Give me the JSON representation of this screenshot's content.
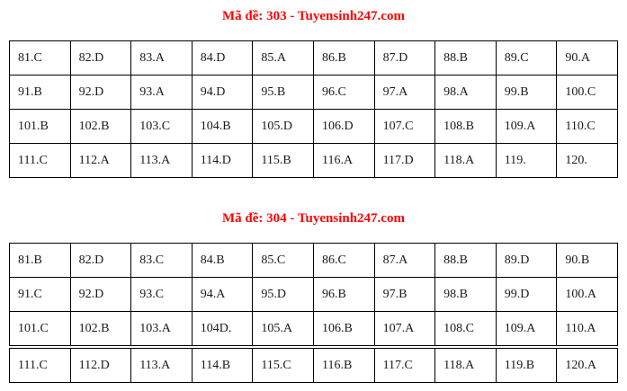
{
  "colors": {
    "title_red": "#ff0000",
    "cell_text": "#1a1a1a",
    "table_border": "#000000",
    "background": "#ffffff"
  },
  "table_303": {
    "title": "Mã đề: 303 - Tuyensinh247.com",
    "rows": [
      [
        "81.C",
        "82.D",
        "83.A",
        "84.D",
        "85.A",
        "86.B",
        "87.D",
        "88.B",
        "89.C",
        "90.A"
      ],
      [
        "91.B",
        "92.D",
        "93.A",
        "94.D",
        "95.B",
        "96.C",
        "97.A",
        "98.A",
        "99.B",
        "100.C"
      ],
      [
        "101.B",
        "102.B",
        "103.C",
        "104.B",
        "105.D",
        "106.D",
        "107.C",
        "108.B",
        "109.A",
        "110.C"
      ],
      [
        "111.C",
        "112.A",
        "113.A",
        "114.D",
        "115.B",
        "116.A",
        "117.D",
        "118.A",
        "119.",
        "120."
      ]
    ]
  },
  "table_304": {
    "title": "Mã đề: 304 - Tuyensinh247.com",
    "rows": [
      [
        "81.B",
        "82.D",
        "83.C",
        "84.B",
        "85.C",
        "86.C",
        "87.A",
        "88.B",
        "89.D",
        "90.B"
      ],
      [
        "91.C",
        "92.D",
        "93.C",
        "94.A",
        "95.D",
        "96.B",
        "97.B",
        "98.B",
        "99.D",
        "100.A"
      ],
      [
        "101.C",
        "102.B",
        "103.A",
        "104D.",
        "105.A",
        "106.B",
        "107.A",
        "108.C",
        "109.A",
        "110.A"
      ],
      [
        "111.C",
        "112.D",
        "113.A",
        "114.B",
        "115.C",
        "116.B",
        "117.C",
        "118.A",
        "119.B",
        "120.A"
      ]
    ]
  }
}
